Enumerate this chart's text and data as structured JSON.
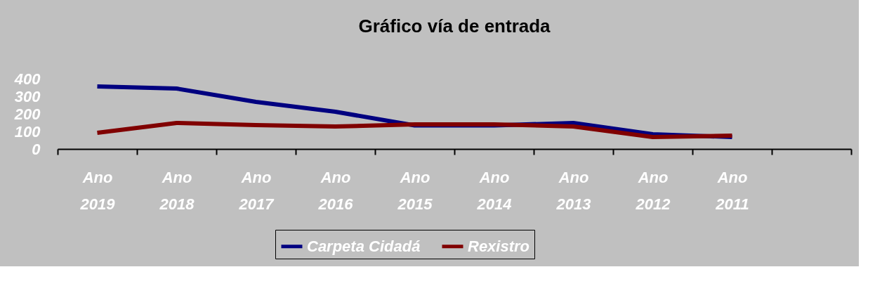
{
  "chart_data": {
    "type": "line",
    "title": "Gráfico vía de entrada",
    "categories": [
      "Ano 2019",
      "Ano 2018",
      "Ano 2017",
      "Ano 2016",
      "Ano 2015",
      "Ano 2014",
      "Ano 2013",
      "Ano 2012",
      "Ano 2011",
      null
    ],
    "series": [
      {
        "name": "Carpeta Cidadá",
        "color": "#000080",
        "values": [
          356,
          344,
          268,
          212,
          134,
          134,
          148,
          84,
          68,
          null
        ]
      },
      {
        "name": "Rexistro",
        "color": "#800000",
        "values": [
          92,
          148,
          136,
          128,
          140,
          140,
          128,
          68,
          76,
          null
        ]
      }
    ],
    "ylim": [
      0,
      400
    ],
    "yticks": [
      0,
      100,
      200,
      300,
      400
    ],
    "grid": false,
    "legend": "bottom",
    "marker": "none",
    "line_style": "solid"
  }
}
